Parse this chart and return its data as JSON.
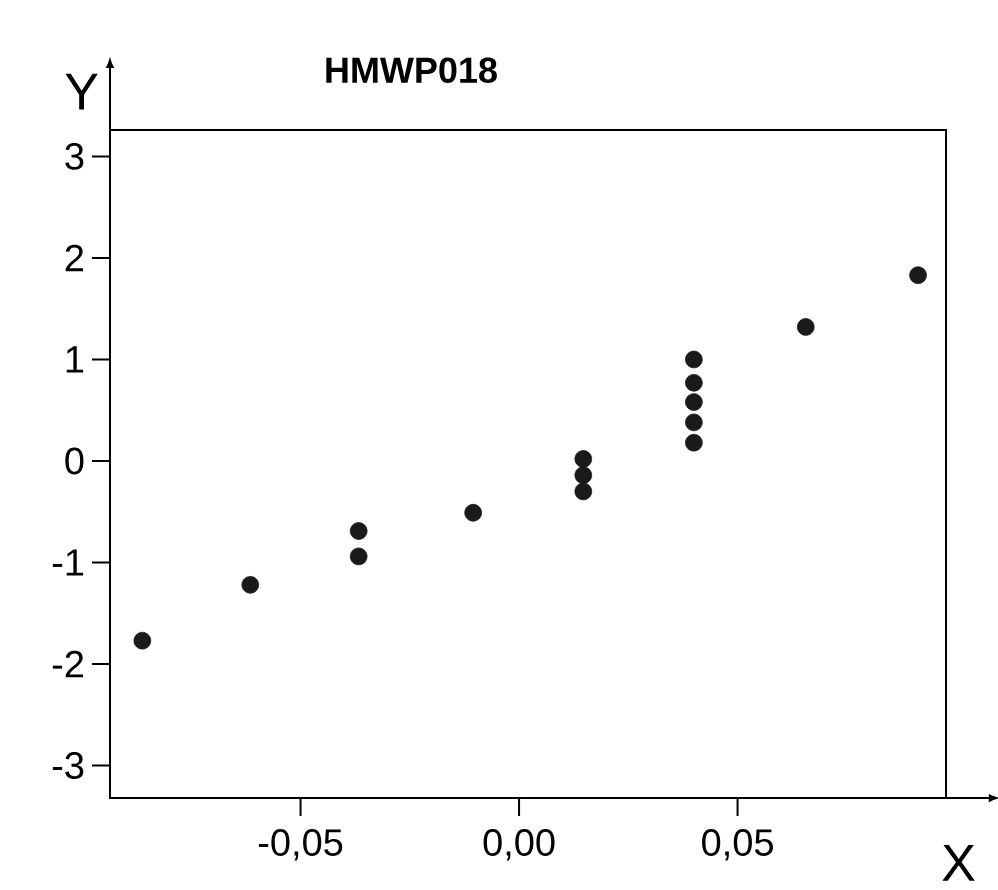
{
  "chart_data": {
    "type": "scatter",
    "title": "HMWP018",
    "xlabel": "X",
    "ylabel": "Y",
    "xlim": [
      -0.0936,
      0.0977
    ],
    "ylim": [
      -3.32,
      3.26
    ],
    "xticks": [
      {
        "value": -0.05,
        "label": "-0,05"
      },
      {
        "value": 0,
        "label": "0,00"
      },
      {
        "value": 0.05,
        "label": "0,05"
      }
    ],
    "yticks": [
      -3,
      -2,
      -1,
      0,
      1,
      2,
      3
    ],
    "grid": false,
    "series": [
      {
        "color": "#1a1a1a",
        "x": [
          -0.0862,
          -0.0615,
          -0.0367,
          -0.0367,
          -0.0105,
          0.0147,
          0.0147,
          0.0147,
          0.04,
          0.04,
          0.04,
          0.04,
          0.04,
          0.0656,
          0.0913
        ],
        "values": [
          -1.77,
          -1.22,
          -0.69,
          -0.94,
          -0.51,
          0.02,
          -0.14,
          -0.3,
          1.0,
          0.77,
          0.58,
          0.38,
          0.18,
          1.32,
          1.83
        ]
      }
    ]
  }
}
